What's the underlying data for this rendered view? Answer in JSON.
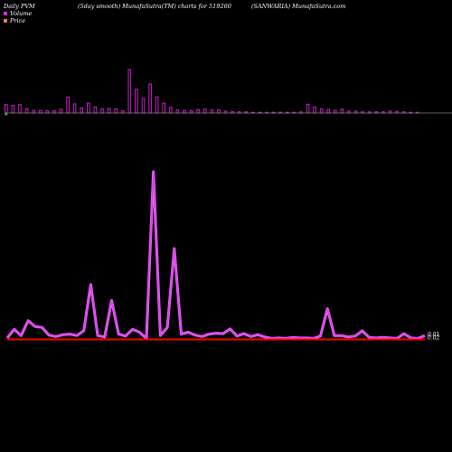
{
  "header": {
    "left": "Daily PVM",
    "middle": "(5day smooth) MunafaSutra(TM) charts for 519260",
    "right": "(SANWARIA) MunafaSutra.com"
  },
  "legend": [
    {
      "label": "Volume",
      "color": "#cc33cc"
    },
    {
      "label": "Price",
      "color": "#e08050"
    }
  ],
  "colors": {
    "volume_bar": "#cc22cc",
    "volume_line": "#cc44ee",
    "volume_line_outline": "#ff66ff",
    "price_line": "#ff0000",
    "axis": "#888888",
    "background": "#000000"
  },
  "chart_data": [
    {
      "type": "bar",
      "series": [
        {
          "name": "Volume",
          "values": [
            2.2,
            2.0,
            2.2,
            1.1,
            0.7,
            0.7,
            0.6,
            0.6,
            1.0,
            4.2,
            2.4,
            1.3,
            2.6,
            1.6,
            1.1,
            1.2,
            1.1,
            0.6,
            11.4,
            6.2,
            3.8,
            7.6,
            4.2,
            2.6,
            1.5,
            0.8,
            0.7,
            0.6,
            0.9,
            1.0,
            0.8,
            0.8,
            0.5,
            0.4,
            0.3,
            0.3,
            0.2,
            0.2,
            0.2,
            0.2,
            0.2,
            0.2,
            0.2,
            0.3,
            2.3,
            1.6,
            1.1,
            0.9,
            0.7,
            1.0,
            0.5,
            0.5,
            0.3,
            0.3,
            0.3,
            0.3,
            0.5,
            0.4,
            0.3,
            0.2,
            0.2
          ]
        }
      ],
      "negative_bar_index": 0
    },
    {
      "type": "line",
      "series": [
        {
          "name": "Volume",
          "values": [
            0.4,
            2.2,
            0.9,
            4.0,
            2.8,
            2.6,
            1.0,
            0.7,
            1.1,
            1.2,
            0.9,
            1.9,
            11.5,
            0.9,
            0.6,
            8.2,
            1.2,
            0.8,
            2.2,
            1.6,
            0.3,
            35.0,
            0.9,
            2.6,
            19.0,
            1.2,
            1.6,
            1.0,
            0.7,
            1.2,
            1.4,
            1.3,
            2.3,
            0.8,
            1.3,
            0.7,
            1.1,
            0.6,
            0.3,
            0.4,
            0.3,
            0.5,
            0.4,
            0.4,
            0.3,
            0.8,
            6.5,
            0.9,
            0.9,
            0.6,
            0.8,
            1.9,
            0.5,
            0.4,
            0.5,
            0.4,
            0.3,
            1.3,
            0.4,
            0.3,
            0.9
          ]
        },
        {
          "name": "Price",
          "values": [
            0.1,
            0.1,
            0.1,
            0.1,
            0.1,
            0.1,
            0.1,
            0.1,
            0.1,
            0.1,
            0.1,
            0.1,
            0.1,
            0.1,
            0.1,
            0.1,
            0.1,
            0.1,
            0.1,
            0.1,
            0.1,
            0.1,
            0.1,
            0.1,
            0.1,
            0.1,
            0.1,
            0.1,
            0.1,
            0.1,
            0.1,
            0.1,
            0.1,
            0.1,
            0.1,
            0.1,
            0.1,
            0.1,
            0.1,
            0.1,
            0.1,
            0.1,
            0.1,
            0.1,
            0.1,
            0.1,
            0.1,
            0.1,
            0.1,
            0.1,
            0.1,
            0.1,
            0.1,
            0.1,
            0.1,
            0.1,
            0.1,
            0.1,
            0.1,
            0.1,
            0.1
          ]
        }
      ],
      "end_labels": [
        "0.01",
        "0.02"
      ]
    }
  ]
}
